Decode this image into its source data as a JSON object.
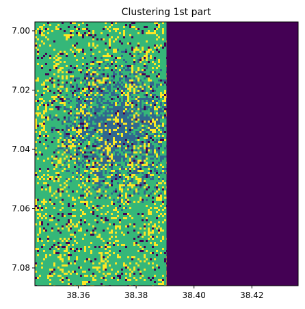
{
  "chart_data": {
    "type": "heatmap",
    "title": "Clustering 1st part",
    "xlabel": "",
    "ylabel": "",
    "xlim": [
      38.345,
      38.436
    ],
    "ylim": [
      7.086,
      6.997
    ],
    "x_ticks": [
      38.36,
      38.38,
      38.4,
      38.42
    ],
    "x_tick_labels": [
      "38.36",
      "38.38",
      "38.40",
      "38.42"
    ],
    "y_ticks": [
      7.0,
      7.02,
      7.04,
      7.06,
      7.08
    ],
    "y_tick_labels": [
      "7.00",
      "7.02",
      "7.04",
      "7.06",
      "7.08"
    ],
    "grid": false,
    "legend": "none",
    "colormap": "viridis",
    "clusters": [
      {
        "id": 0,
        "color": "#440154"
      },
      {
        "id": 1,
        "color": "#31688e"
      },
      {
        "id": 2,
        "color": "#35b779"
      },
      {
        "id": 3,
        "color": "#fde725"
      }
    ],
    "data_extent_x": [
      38.345,
      38.3905
    ],
    "filled_region_cluster": 0
  }
}
